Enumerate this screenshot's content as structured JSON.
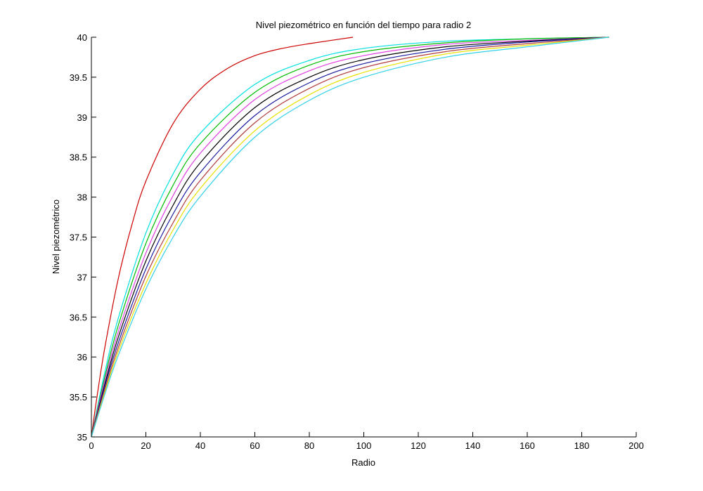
{
  "chart_data": {
    "type": "line",
    "title": "Nivel piezométrico en función del tiempo para radio 2",
    "xlabel": "Radio",
    "ylabel": "Nivel piezométrico",
    "xlim": [
      0,
      200
    ],
    "ylim": [
      35,
      40
    ],
    "xticks": [
      0,
      20,
      40,
      60,
      80,
      100,
      120,
      140,
      160,
      180,
      200
    ],
    "yticks": [
      35,
      35.5,
      36,
      36.5,
      37,
      37.5,
      38,
      38.5,
      39,
      39.5,
      40
    ],
    "xtick_labels": [
      "0",
      "20",
      "40",
      "60",
      "80",
      "100",
      "120",
      "140",
      "160",
      "180",
      "200"
    ],
    "ytick_labels": [
      "35",
      "35.5",
      "36",
      "36.5",
      "37",
      "37.5",
      "38",
      "38.5",
      "39",
      "39.5",
      "40"
    ],
    "grid": false,
    "legend": "none",
    "series": [
      {
        "name": "curve-1",
        "color": "#cc0000",
        "x": [
          0,
          2,
          5,
          10,
          15,
          20,
          30,
          40,
          50,
          60,
          70,
          80,
          96
        ],
        "y": [
          35,
          35.49,
          36.13,
          37.0,
          37.67,
          38.2,
          38.92,
          39.35,
          39.61,
          39.77,
          39.86,
          39.92,
          40
        ]
      },
      {
        "name": "curve-2",
        "color": "#00e0e0",
        "x": [
          0,
          5,
          10,
          20,
          30,
          40,
          60,
          80,
          100,
          130,
          160,
          190
        ],
        "y": [
          35,
          35.82,
          36.5,
          37.55,
          38.29,
          38.8,
          39.41,
          39.71,
          39.86,
          39.95,
          39.98,
          40
        ]
      },
      {
        "name": "curve-3",
        "color": "#00bb00",
        "x": [
          0,
          5,
          10,
          20,
          30,
          40,
          60,
          80,
          100,
          130,
          160,
          190
        ],
        "y": [
          35,
          35.76,
          36.41,
          37.42,
          38.15,
          38.67,
          39.31,
          39.65,
          39.82,
          39.93,
          39.98,
          40
        ]
      },
      {
        "name": "curve-4",
        "color": "#e040e0",
        "x": [
          0,
          5,
          10,
          20,
          30,
          40,
          60,
          80,
          100,
          130,
          160,
          190
        ],
        "y": [
          35,
          35.72,
          36.33,
          37.3,
          38.02,
          38.55,
          39.22,
          39.58,
          39.77,
          39.91,
          39.96,
          40
        ]
      },
      {
        "name": "curve-5",
        "color": "#000000",
        "x": [
          0,
          5,
          10,
          20,
          30,
          40,
          60,
          80,
          100,
          130,
          160,
          190
        ],
        "y": [
          35,
          35.67,
          36.26,
          37.2,
          37.9,
          38.43,
          39.12,
          39.5,
          39.72,
          39.88,
          39.95,
          40
        ]
      },
      {
        "name": "curve-6",
        "color": "#1a1aa0",
        "x": [
          0,
          5,
          10,
          20,
          30,
          40,
          60,
          80,
          100,
          130,
          160,
          190
        ],
        "y": [
          35,
          35.64,
          36.19,
          37.1,
          37.79,
          38.31,
          39.02,
          39.43,
          39.67,
          39.85,
          39.94,
          40
        ]
      },
      {
        "name": "curve-7",
        "color": "#b03a3a",
        "x": [
          0,
          5,
          10,
          20,
          30,
          40,
          60,
          80,
          100,
          130,
          160,
          190
        ],
        "y": [
          35,
          35.6,
          36.13,
          37.01,
          37.68,
          38.21,
          38.93,
          39.36,
          39.62,
          39.82,
          39.92,
          40
        ]
      },
      {
        "name": "curve-8",
        "color": "#e8e000",
        "x": [
          0,
          5,
          10,
          20,
          30,
          40,
          60,
          80,
          100,
          130,
          160,
          190
        ],
        "y": [
          35,
          35.57,
          36.08,
          36.92,
          37.59,
          38.11,
          38.83,
          39.28,
          39.56,
          39.79,
          39.9,
          40
        ]
      },
      {
        "name": "curve-9",
        "color": "#30d0e8",
        "x": [
          0,
          5,
          10,
          20,
          30,
          40,
          60,
          80,
          100,
          130,
          160,
          190
        ],
        "y": [
          35,
          35.54,
          36.03,
          36.85,
          37.5,
          38.01,
          38.75,
          39.21,
          39.5,
          39.75,
          39.88,
          40
        ]
      }
    ]
  }
}
